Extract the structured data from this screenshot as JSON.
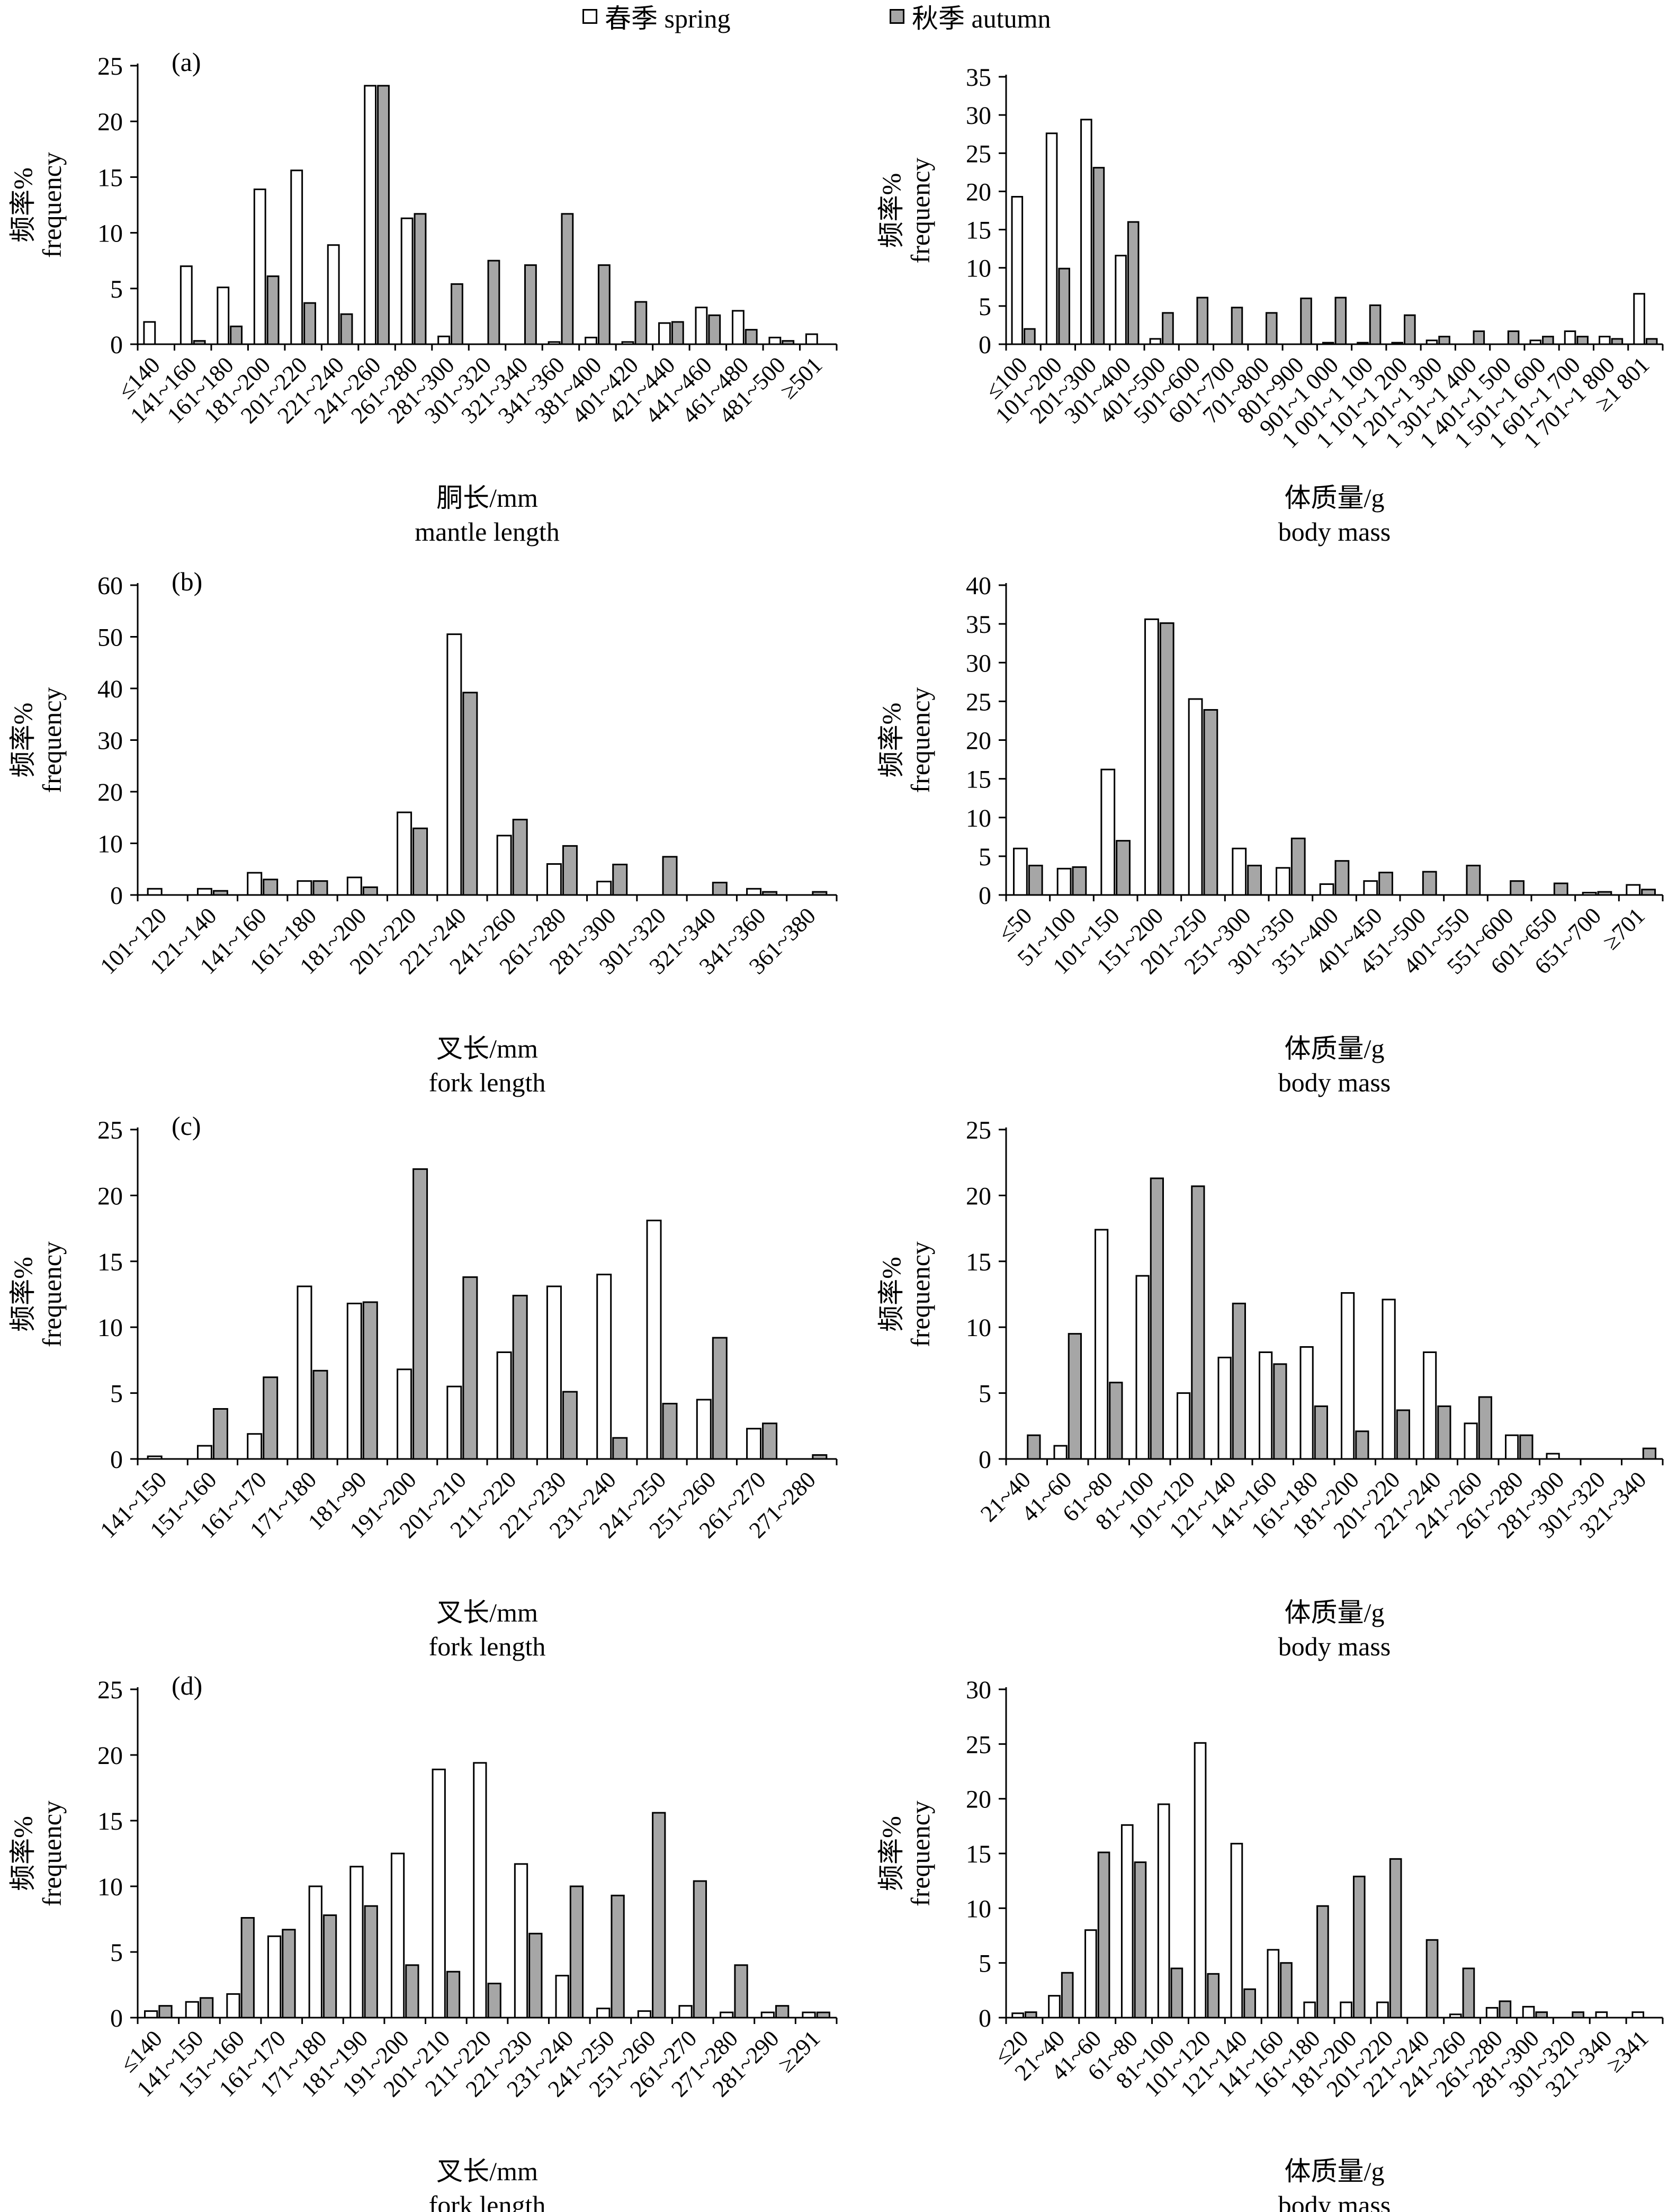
{
  "legend": {
    "spring": {
      "label": "春季 spring",
      "color": "#ffffff"
    },
    "autumn": {
      "label": "秋季 autumn",
      "color": "#a6a6a6"
    }
  },
  "chart_data": [
    {
      "type": "bar",
      "panel_label": "(a)",
      "ylabel": [
        "频率%",
        "frequency"
      ],
      "xlabel": [
        "胴长/mm",
        "mantle length"
      ],
      "ylim": [
        0,
        25
      ],
      "yticks": [
        0,
        5,
        10,
        15,
        20,
        25
      ],
      "categories": [
        "≤140",
        "141~160",
        "161~180",
        "181~200",
        "201~220",
        "221~240",
        "241~260",
        "261~280",
        "281~300",
        "301~320",
        "321~340",
        "341~360",
        "381~400",
        "401~420",
        "421~440",
        "441~460",
        "461~480",
        "481~500",
        "≥501"
      ],
      "series": [
        {
          "name": "春季 spring",
          "values": [
            2.0,
            7.0,
            5.1,
            13.9,
            15.6,
            8.9,
            23.2,
            11.3,
            0.7,
            0,
            0,
            0.2,
            0.6,
            0.2,
            1.9,
            3.3,
            3.0,
            0.6,
            0.9
          ]
        },
        {
          "name": "秋季 autumn",
          "values": [
            0,
            0.3,
            1.6,
            6.1,
            3.7,
            2.7,
            23.2,
            11.7,
            5.4,
            7.5,
            7.1,
            11.7,
            7.1,
            3.8,
            2.0,
            2.6,
            1.3,
            0.3,
            0
          ]
        }
      ]
    },
    {
      "type": "bar",
      "panel_label": "",
      "ylabel": [
        "频率%",
        "frequency"
      ],
      "xlabel": [
        "体质量/g",
        "body mass"
      ],
      "ylim": [
        0,
        35
      ],
      "yticks": [
        0,
        5,
        10,
        15,
        20,
        25,
        30,
        35
      ],
      "categories": [
        "≤100",
        "101~200",
        "201~300",
        "301~400",
        "401~500",
        "501~600",
        "601~700",
        "701~800",
        "801~900",
        "901~1 000",
        "1 001~1 100",
        "1 101~1 200",
        "1 201~1 300",
        "1 301~1 400",
        "1 401~1 500",
        "1 501~1 600",
        "1 601~1 700",
        "1 701~1 800",
        "≥1 801"
      ],
      "series": [
        {
          "name": "春季 spring",
          "values": [
            19.3,
            27.6,
            29.4,
            11.6,
            0.7,
            0,
            0,
            0,
            0,
            0.2,
            0.2,
            0.2,
            0.5,
            0,
            0,
            0.5,
            1.7,
            1.0,
            6.6
          ]
        },
        {
          "name": "秋季 autumn",
          "values": [
            2.0,
            9.9,
            23.1,
            16.0,
            4.1,
            6.1,
            4.8,
            4.1,
            6.0,
            6.1,
            5.1,
            3.8,
            1.0,
            1.7,
            1.7,
            1.0,
            1.0,
            0.7,
            0.7
          ]
        }
      ]
    },
    {
      "type": "bar",
      "panel_label": "(b)",
      "ylabel": [
        "频率%",
        "frequency"
      ],
      "xlabel": [
        "叉长/mm",
        "fork length"
      ],
      "ylim": [
        0,
        60
      ],
      "yticks": [
        0,
        10,
        20,
        30,
        40,
        50,
        60
      ],
      "categories": [
        "101~120",
        "121~140",
        "141~160",
        "161~180",
        "181~200",
        "201~220",
        "221~240",
        "241~260",
        "261~280",
        "281~300",
        "301~320",
        "321~340",
        "341~360",
        "361~380"
      ],
      "series": [
        {
          "name": "春季 spring",
          "values": [
            1.2,
            1.2,
            4.3,
            2.7,
            3.4,
            16.0,
            50.5,
            11.5,
            6.0,
            2.6,
            0,
            0,
            1.2,
            0
          ]
        },
        {
          "name": "秋季 autumn",
          "values": [
            0,
            0.8,
            3.0,
            2.7,
            1.5,
            12.9,
            39.2,
            14.6,
            9.5,
            5.9,
            7.4,
            2.4,
            0.6,
            0.6
          ]
        }
      ]
    },
    {
      "type": "bar",
      "panel_label": "",
      "ylabel": [
        "频率%",
        "frequency"
      ],
      "xlabel": [
        "体质量/g",
        "body mass"
      ],
      "ylim": [
        0,
        40
      ],
      "yticks": [
        0,
        5,
        10,
        15,
        20,
        25,
        30,
        35,
        40
      ],
      "categories": [
        "≤50",
        "51~100",
        "101~150",
        "151~200",
        "201~250",
        "251~300",
        "301~350",
        "351~400",
        "401~450",
        "451~500",
        "401~550",
        "551~600",
        "601~650",
        "651~700",
        "≥701"
      ],
      "series": [
        {
          "name": "春季 spring",
          "values": [
            6.0,
            3.4,
            16.2,
            35.6,
            25.3,
            6.0,
            3.5,
            1.4,
            1.8,
            0,
            0,
            0,
            0,
            0.3,
            1.3
          ]
        },
        {
          "name": "秋季 autumn",
          "values": [
            3.8,
            3.6,
            7.0,
            35.1,
            23.9,
            3.8,
            7.3,
            4.4,
            2.9,
            3.0,
            3.8,
            1.8,
            1.5,
            0.4,
            0.7
          ]
        }
      ]
    },
    {
      "type": "bar",
      "panel_label": "(c)",
      "ylabel": [
        "频率%",
        "frequency"
      ],
      "xlabel": [
        "叉长/mm",
        "fork length"
      ],
      "ylim": [
        0,
        25
      ],
      "yticks": [
        0,
        5,
        10,
        15,
        20,
        25
      ],
      "categories": [
        "141~150",
        "151~160",
        "161~170",
        "171~180",
        "181~90",
        "191~200",
        "201~210",
        "211~220",
        "221~230",
        "231~240",
        "241~250",
        "251~260",
        "261~270",
        "271~280"
      ],
      "series": [
        {
          "name": "春季 spring",
          "values": [
            0.2,
            1.0,
            1.9,
            13.1,
            11.8,
            6.8,
            5.5,
            8.1,
            13.1,
            14.0,
            18.1,
            4.5,
            2.3,
            0
          ]
        },
        {
          "name": "秋季 autumn",
          "values": [
            0,
            3.8,
            6.2,
            6.7,
            11.9,
            22.0,
            13.8,
            12.4,
            5.1,
            1.6,
            4.2,
            9.2,
            2.7,
            0.3
          ]
        }
      ]
    },
    {
      "type": "bar",
      "panel_label": "",
      "ylabel": [
        "频率%",
        "frequency"
      ],
      "xlabel": [
        "体质量/g",
        "body mass"
      ],
      "ylim": [
        0,
        25
      ],
      "yticks": [
        0,
        5,
        10,
        15,
        20,
        25
      ],
      "categories": [
        "21~40",
        "41~60",
        "61~80",
        "81~100",
        "101~120",
        "121~140",
        "141~160",
        "161~180",
        "181~200",
        "201~220",
        "221~240",
        "241~260",
        "261~280",
        "281~300",
        "301~320",
        "321~340"
      ],
      "series": [
        {
          "name": "春季 spring",
          "values": [
            0,
            1.0,
            17.4,
            13.9,
            5.0,
            7.7,
            8.1,
            8.5,
            12.6,
            12.1,
            8.1,
            2.7,
            1.8,
            0.4,
            0,
            0
          ]
        },
        {
          "name": "秋季 autumn",
          "values": [
            1.8,
            9.5,
            5.8,
            21.3,
            20.7,
            11.8,
            7.2,
            4.0,
            2.1,
            3.7,
            4.0,
            4.7,
            1.8,
            0,
            0,
            0.8
          ]
        }
      ]
    },
    {
      "type": "bar",
      "panel_label": "(d)",
      "ylabel": [
        "频率%",
        "frequency"
      ],
      "xlabel": [
        "叉长/mm",
        "fork length"
      ],
      "ylim": [
        0,
        25
      ],
      "yticks": [
        0,
        5,
        10,
        15,
        20,
        25
      ],
      "categories": [
        "≤140",
        "141~150",
        "151~160",
        "161~170",
        "171~180",
        "181~190",
        "191~200",
        "201~210",
        "211~220",
        "221~230",
        "231~240",
        "241~250",
        "251~260",
        "261~270",
        "271~280",
        "281~290",
        "≥291"
      ],
      "series": [
        {
          "name": "春季 spring",
          "values": [
            0.5,
            1.2,
            1.8,
            6.2,
            10.0,
            11.5,
            12.5,
            18.9,
            19.4,
            11.7,
            3.2,
            0.7,
            0.5,
            0.9,
            0.4,
            0.4,
            0.4
          ]
        },
        {
          "name": "秋季 autumn",
          "values": [
            0.9,
            1.5,
            7.6,
            6.7,
            7.8,
            8.5,
            4.0,
            3.5,
            2.6,
            6.4,
            10.0,
            9.3,
            15.6,
            10.4,
            4.0,
            0.9,
            0.4
          ]
        }
      ]
    },
    {
      "type": "bar",
      "panel_label": "",
      "ylabel": [
        "频率%",
        "frequency"
      ],
      "xlabel": [
        "体质量/g",
        "body mass"
      ],
      "ylim": [
        0,
        30
      ],
      "yticks": [
        0,
        5,
        10,
        15,
        20,
        25,
        30
      ],
      "categories": [
        "≤20",
        "21~40",
        "41~60",
        "61~80",
        "81~100",
        "101~120",
        "121~140",
        "141~160",
        "161~180",
        "181~200",
        "201~220",
        "221~240",
        "241~260",
        "261~280",
        "281~300",
        "301~320",
        "321~340",
        "≥341"
      ],
      "series": [
        {
          "name": "春季 spring",
          "values": [
            0.4,
            2.0,
            8.0,
            17.6,
            19.5,
            25.1,
            15.9,
            6.2,
            1.4,
            1.4,
            1.4,
            0,
            0.3,
            0.9,
            1.0,
            0,
            0.5,
            0.5
          ]
        },
        {
          "name": "秋季 autumn",
          "values": [
            0.5,
            4.1,
            15.1,
            14.2,
            4.5,
            4.0,
            2.6,
            5.0,
            10.2,
            12.9,
            14.5,
            7.1,
            4.5,
            1.5,
            0.5,
            0.5,
            0,
            0
          ]
        }
      ]
    }
  ]
}
